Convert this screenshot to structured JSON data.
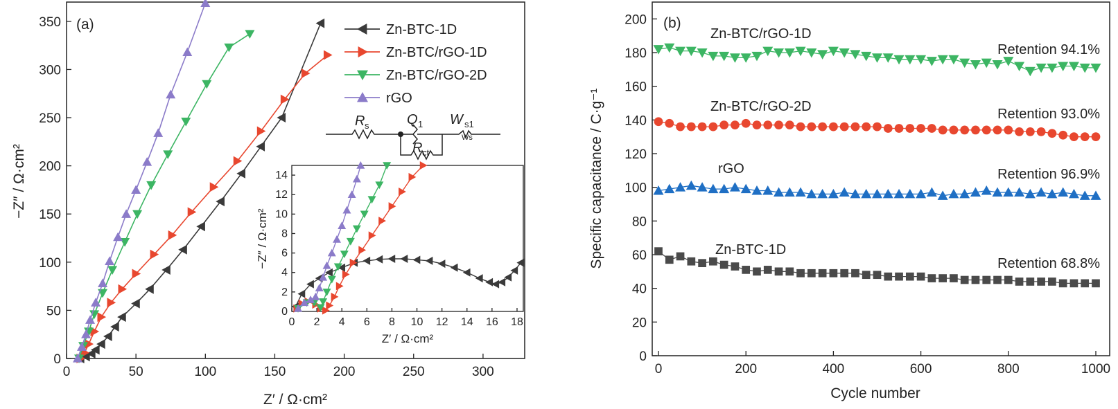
{
  "chart_data": [
    {
      "type": "line",
      "panel_label": "(a)",
      "xlabel": "Z′ / Ω·cm²",
      "ylabel": "−Z″ / Ω·cm²",
      "xlim": [
        0,
        330
      ],
      "ylim": [
        0,
        370
      ],
      "xticks": [
        0,
        50,
        100,
        150,
        200,
        250,
        300
      ],
      "yticks": [
        0,
        50,
        100,
        150,
        200,
        250,
        300,
        350
      ],
      "legend_position": "top-right",
      "series": [
        {
          "name": "Zn-BTC-1D",
          "color": "#3a3a3a",
          "marker": "triangle-left",
          "x": [
            10,
            14,
            18,
            21,
            25,
            30,
            35,
            40,
            50,
            60,
            72,
            84,
            97,
            111,
            126,
            140,
            155,
            183
          ],
          "y": [
            0,
            2,
            5,
            9,
            15,
            23,
            33,
            43,
            57,
            72,
            92,
            113,
            137,
            163,
            192,
            220,
            250,
            348
          ]
        },
        {
          "name": "Zn-BTC/rGO-1D",
          "color": "#e8472f",
          "marker": "triangle-right",
          "x": [
            10,
            13,
            16,
            20,
            25,
            32,
            40,
            50,
            63,
            76,
            90,
            106,
            123,
            140,
            157,
            172,
            188
          ],
          "y": [
            0,
            6,
            15,
            28,
            43,
            58,
            72,
            88,
            108,
            128,
            152,
            178,
            205,
            236,
            269,
            296,
            315
          ]
        },
        {
          "name": "Zn-BTC/rGO-2D",
          "color": "#3cb563",
          "marker": "triangle-down",
          "x": [
            9,
            12,
            16,
            20,
            26,
            33,
            42,
            51,
            61,
            73,
            86,
            101,
            117,
            132
          ],
          "y": [
            0,
            13,
            28,
            46,
            68,
            92,
            121,
            150,
            180,
            212,
            246,
            285,
            323,
            337
          ]
        },
        {
          "name": "rGO",
          "color": "#8b7bc9",
          "marker": "triangle-up",
          "x": [
            8,
            11,
            14,
            17,
            21,
            26,
            31,
            37,
            43,
            50,
            58,
            66,
            75,
            87,
            100
          ],
          "y": [
            0,
            12,
            25,
            40,
            58,
            78,
            101,
            126,
            150,
            175,
            204,
            234,
            274,
            318,
            369
          ]
        }
      ],
      "circuit": {
        "labels": [
          "R",
          "s",
          "Q",
          "1",
          "W",
          "s1",
          "R",
          "ct",
          "Ws"
        ]
      },
      "inset": {
        "type": "line",
        "xlabel": "Z′ / Ω·cm²",
        "ylabel": "−Z″ / Ω·cm²",
        "xlim": [
          0,
          18.5
        ],
        "ylim": [
          0,
          15
        ],
        "xticks": [
          0,
          2,
          4,
          6,
          8,
          10,
          12,
          14,
          16,
          18
        ],
        "yticks": [
          0,
          2,
          4,
          6,
          8,
          10,
          12,
          14
        ],
        "series": [
          {
            "name": "Zn-BTC-1D",
            "x": [
              0.3,
              0.8,
              1.5,
              2.2,
              3.0,
              4.0,
              5.0,
              6.0,
              7.0,
              8.0,
              9.0,
              10.0,
              11.0,
              12.0,
              13.0,
              14.0,
              15.0,
              15.8,
              16.3,
              16.8,
              17.3,
              17.8,
              18.3
            ],
            "y": [
              0.5,
              1.8,
              2.8,
              3.4,
              4.0,
              4.5,
              5.0,
              5.2,
              5.35,
              5.4,
              5.4,
              5.3,
              5.2,
              4.9,
              4.5,
              4.0,
              3.4,
              3.0,
              2.8,
              3.0,
              3.5,
              4.2,
              5.0
            ]
          },
          {
            "name": "Zn-BTC/rGO-1D",
            "x": [
              0.4,
              0.8,
              1.3,
              1.9,
              2.3,
              2.7,
              3.0,
              3.4,
              3.8,
              4.3,
              4.9,
              5.6,
              6.4,
              7.2,
              8.0,
              8.8,
              9.6,
              10.5
            ],
            "y": [
              0.3,
              0.8,
              1.0,
              0.7,
              0.3,
              0.1,
              0.6,
              1.5,
              2.6,
              3.8,
              5.0,
              6.3,
              7.8,
              9.3,
              10.8,
              12.3,
              13.8,
              15
            ]
          },
          {
            "name": "Zn-BTC/rGO-2D",
            "x": [
              0.5,
              1.2,
              1.8,
              2.3,
              2.5,
              2.8,
              3.2,
              3.7,
              4.2,
              4.7,
              5.2,
              5.8,
              6.4,
              7.0,
              7.6
            ],
            "y": [
              0.3,
              0.9,
              0.9,
              0.4,
              1.0,
              2.0,
              3.3,
              4.6,
              5.9,
              7.2,
              8.5,
              10.0,
              11.5,
              13.0,
              15
            ]
          },
          {
            "name": "rGO",
            "x": [
              0.5,
              1.0,
              1.5,
              1.9,
              2.2,
              2.5,
              2.8,
              3.2,
              3.6,
              4.0,
              4.4,
              4.8,
              5.2,
              5.5
            ],
            "y": [
              0.3,
              0.9,
              1.2,
              1.5,
              2.4,
              3.5,
              4.7,
              6.0,
              7.4,
              8.8,
              10.4,
              12.0,
              13.6,
              15
            ]
          }
        ]
      }
    },
    {
      "type": "scatter",
      "panel_label": "(b)",
      "xlabel": "Cycle number",
      "ylabel": "Specific capacitance / C·g⁻¹",
      "xlim": [
        0,
        1000
      ],
      "ylim": [
        0,
        210
      ],
      "xticks": [
        0,
        200,
        400,
        600,
        800,
        1000
      ],
      "yticks": [
        0,
        20,
        40,
        60,
        80,
        100,
        120,
        140,
        160,
        180,
        200
      ],
      "series": [
        {
          "name": "Zn-BTC/rGO-1D",
          "color": "#3cb563",
          "marker": "triangle-down",
          "label": "Zn-BTC/rGO-1D",
          "retention": "Retention 94.1%",
          "x": [
            0,
            25,
            50,
            75,
            100,
            125,
            150,
            175,
            200,
            225,
            250,
            275,
            300,
            325,
            350,
            375,
            400,
            425,
            450,
            475,
            500,
            525,
            550,
            575,
            600,
            625,
            650,
            675,
            700,
            725,
            750,
            775,
            800,
            825,
            850,
            875,
            900,
            925,
            950,
            975,
            1000
          ],
          "y": [
            182,
            183,
            181,
            181,
            180,
            178,
            178,
            177,
            177,
            178,
            181,
            180,
            180,
            181,
            180,
            179,
            181,
            180,
            179,
            178,
            177,
            177,
            176,
            176,
            176,
            175,
            176,
            176,
            174,
            173,
            174,
            173,
            175,
            172,
            169,
            171,
            171,
            172,
            172,
            171,
            171
          ]
        },
        {
          "name": "Zn-BTC/rGO-2D",
          "color": "#e8472f",
          "marker": "circle",
          "label": "Zn-BTC/rGO-2D",
          "retention": "Retention 93.0%",
          "x": [
            0,
            25,
            50,
            75,
            100,
            125,
            150,
            175,
            200,
            225,
            250,
            275,
            300,
            325,
            350,
            375,
            400,
            425,
            450,
            475,
            500,
            525,
            550,
            575,
            600,
            625,
            650,
            675,
            700,
            725,
            750,
            775,
            800,
            825,
            850,
            875,
            900,
            925,
            950,
            975,
            1000
          ],
          "y": [
            139,
            138,
            136,
            136,
            136,
            136,
            137,
            137,
            138,
            137,
            137,
            137,
            137,
            136,
            136,
            136,
            136,
            136,
            136,
            136,
            136,
            135,
            135,
            135,
            135,
            135,
            134,
            134,
            134,
            134,
            134,
            134,
            134,
            133,
            133,
            133,
            132,
            131,
            130,
            130,
            130
          ]
        },
        {
          "name": "rGO",
          "color": "#1f6fc4",
          "marker": "triangle-up",
          "label": "rGO",
          "retention": "Retention 96.9%",
          "x": [
            0,
            25,
            50,
            75,
            100,
            125,
            150,
            175,
            200,
            225,
            250,
            275,
            300,
            325,
            350,
            375,
            400,
            425,
            450,
            475,
            500,
            525,
            550,
            575,
            600,
            625,
            650,
            675,
            700,
            725,
            750,
            775,
            800,
            825,
            850,
            875,
            900,
            925,
            950,
            975,
            1000
          ],
          "y": [
            98,
            99,
            100,
            101,
            100,
            99,
            99,
            100,
            99,
            98,
            98,
            97,
            97,
            97,
            96,
            96,
            96,
            97,
            96,
            96,
            96,
            96,
            96,
            96,
            96,
            97,
            95,
            96,
            96,
            97,
            98,
            97,
            97,
            97,
            96,
            97,
            96,
            97,
            96,
            95,
            95
          ]
        },
        {
          "name": "Zn-BTC-1D",
          "color": "#4a4a4a",
          "marker": "square",
          "label": "Zn-BTC-1D",
          "retention": "Retention 68.8%",
          "x": [
            0,
            25,
            50,
            75,
            100,
            125,
            150,
            175,
            200,
            225,
            250,
            275,
            300,
            325,
            350,
            375,
            400,
            425,
            450,
            475,
            500,
            525,
            550,
            575,
            600,
            625,
            650,
            675,
            700,
            725,
            750,
            775,
            800,
            825,
            850,
            875,
            900,
            925,
            950,
            975,
            1000
          ],
          "y": [
            62,
            57,
            59,
            56,
            55,
            56,
            54,
            53,
            51,
            50,
            51,
            50,
            50,
            49,
            49,
            49,
            49,
            49,
            49,
            48,
            48,
            47,
            47,
            47,
            47,
            46,
            46,
            46,
            45,
            45,
            45,
            45,
            45,
            44,
            44,
            44,
            44,
            43,
            43,
            43,
            43
          ]
        }
      ]
    }
  ]
}
